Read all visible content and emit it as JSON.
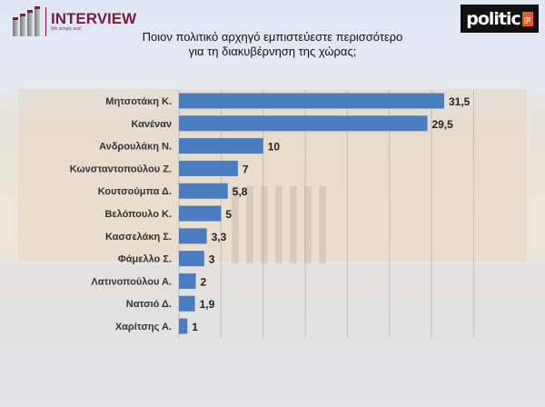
{
  "branding": {
    "left_logo_name": "INTERVIEW",
    "left_logo_tagline": "We simply ask!",
    "right_logo_text": "politic",
    "right_logo_badge": "gr"
  },
  "colors": {
    "bar": "#4a7cc0",
    "brand": "#7a1c3c"
  },
  "chart_data": {
    "type": "bar",
    "orientation": "horizontal",
    "title_line1": "Ποιον πολιτικό αρχηγό εμπιστεύεστε περισσότερο",
    "title_line2": "για τη διακυβέρνηση της χώρας;",
    "categories": [
      "Μητσοτάκη Κ.",
      "Κανέναν",
      "Ανδρουλάκη Ν.",
      "Κωνσταντοπούλου Ζ.",
      "Κουτσούμπα Δ.",
      "Βελόπουλο Κ.",
      "Κασσελάκη Σ.",
      "Φάμελλο Σ.",
      "Λατινοπούλου Α.",
      "Νατσιό Δ.",
      "Χαρίτσης Α."
    ],
    "values": [
      31.5,
      29.5,
      10,
      7,
      5.8,
      5,
      3.3,
      3,
      2,
      1.9,
      1
    ],
    "value_labels": [
      "31,5",
      "29,5",
      "10",
      "7",
      "5,8",
      "5",
      "3,3",
      "3",
      "2",
      "1,9",
      "1"
    ],
    "xlim": [
      0,
      35
    ],
    "grid": true,
    "grid_step": 5
  }
}
